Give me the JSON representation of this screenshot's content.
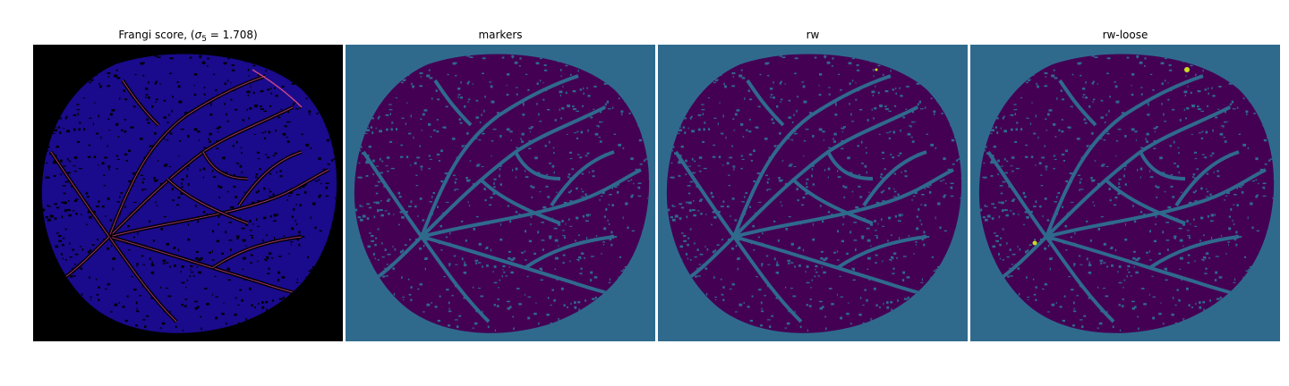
{
  "figure": {
    "panels": [
      {
        "title_prefix": "Frangi score, (",
        "title_symbol": "σ",
        "title_sub": "5",
        "title_suffix": " = 1.708)",
        "background": "#000000",
        "fill": "#1a0a8c",
        "vessel": "#c8448a",
        "pore": "#000000"
      },
      {
        "title": "markers",
        "background": "#2f6a8d",
        "fill": "#440154",
        "pore": "#2f6a8d"
      },
      {
        "title": "rw",
        "background": "#2f6a8d",
        "fill": "#440154",
        "pore": "#2f6a8d",
        "accent": "#c7e020"
      },
      {
        "title": "rw-loose",
        "background": "#2f6a8d",
        "fill": "#440154",
        "pore": "#2f6a8d",
        "accent": "#c7e020"
      }
    ]
  }
}
